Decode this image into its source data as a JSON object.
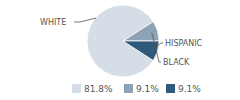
{
  "chart_data": {
    "type": "pie",
    "categories": [
      "WHITE",
      "BLACK",
      "HISPANIC"
    ],
    "values": [
      81.8,
      9.1,
      9.1
    ],
    "value_labels": [
      "81.8%",
      "9.1%",
      "9.1%"
    ],
    "colors": [
      "#d5dde7",
      "#8ea2b5",
      "#2f5a7b"
    ],
    "data_labels": true
  }
}
